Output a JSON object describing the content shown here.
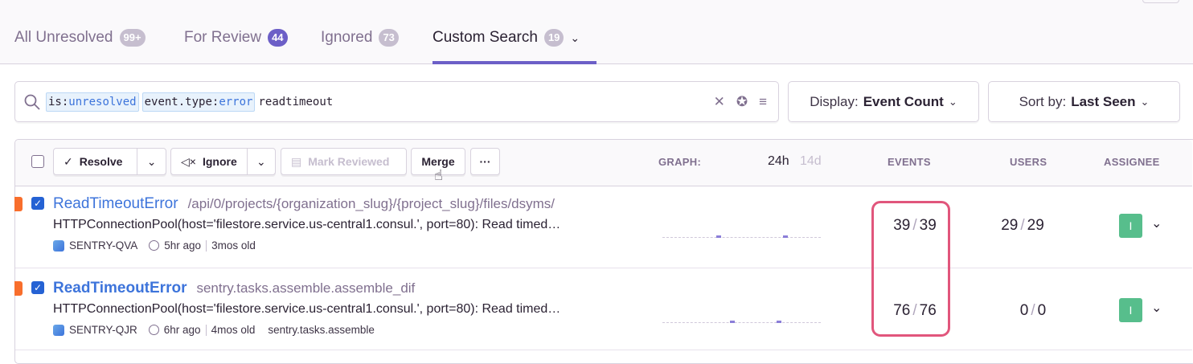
{
  "tabs": [
    {
      "label": "All Unresolved",
      "count": "99+"
    },
    {
      "label": "For Review",
      "count": "44"
    },
    {
      "label": "Ignored",
      "count": "73"
    },
    {
      "label": "Custom Search",
      "count": "19",
      "active": true
    }
  ],
  "search": {
    "tokens": [
      {
        "key": "is:",
        "value": "unresolved"
      },
      {
        "key": "event.type:",
        "value": "error"
      }
    ],
    "text": "readtimeout"
  },
  "display": {
    "label": "Display:",
    "value": "Event Count"
  },
  "sort": {
    "label": "Sort by:",
    "value": "Last Seen"
  },
  "toolbar": {
    "resolve": "Resolve",
    "ignore": "Ignore",
    "mark_reviewed": "Mark Reviewed",
    "merge": "Merge",
    "more": "···"
  },
  "columns": {
    "graph": "GRAPH:",
    "range_24h": "24h",
    "range_14d": "14d",
    "events": "EVENTS",
    "users": "USERS",
    "assignee": "ASSIGNEE"
  },
  "issues": [
    {
      "title": "ReadTimeoutError",
      "culprit": "/api/0/projects/{organization_slug}/{project_slug}/files/dsyms/",
      "message": "HTTPConnectionPool(host='filestore.service.us-central1.consul.', port=80): Read timed…",
      "short_id": "SENTRY-QVA",
      "last_seen": "5hr ago",
      "age": "3mos old",
      "extra": "",
      "events": "39",
      "events_total": "39",
      "users": "29",
      "users_total": "29",
      "assignee": "I",
      "checked": true
    },
    {
      "title": "ReadTimeoutError",
      "culprit": "sentry.tasks.assemble.assemble_dif",
      "message": "HTTPConnectionPool(host='filestore.service.us-central1.consul.', port=80): Read timed…",
      "short_id": "SENTRY-QJR",
      "last_seen": "6hr ago",
      "age": "4mos old",
      "extra": "sentry.tasks.assemble",
      "events": "76",
      "events_total": "76",
      "users": "0",
      "users_total": "0",
      "assignee": "I",
      "checked": true
    }
  ],
  "colors": {
    "accent": "#6c5fc7",
    "link": "#3d74db",
    "level_error": "#f86e2c",
    "highlight": "#e1567c",
    "assignee": "#57be8c"
  }
}
